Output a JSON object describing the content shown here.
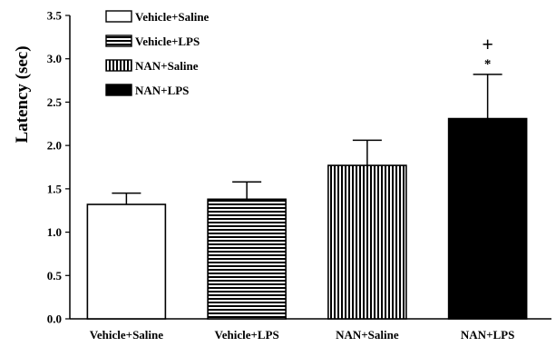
{
  "chart_data": {
    "type": "bar",
    "title": "",
    "xlabel": "",
    "ylabel": "Latency (sec)",
    "ylim": [
      0,
      3.5
    ],
    "yticks": [
      "0.0",
      "0.5",
      "1.0",
      "1.5",
      "2.0",
      "2.5",
      "3.0",
      "3.5"
    ],
    "categories": [
      "Vehicle+Saline",
      "Vehicle+LPS",
      "NAN+Saline",
      "NAN+LPS"
    ],
    "values": [
      1.32,
      1.38,
      1.77,
      2.31
    ],
    "errors": [
      0.13,
      0.2,
      0.29,
      0.51
    ],
    "fills": [
      "white",
      "horizontal-stripes",
      "vertical-stripes",
      "black"
    ],
    "annotations": [
      {
        "category": "NAN+LPS",
        "symbols": [
          "+",
          "*"
        ]
      }
    ],
    "legend": {
      "position": "top-left",
      "entries": [
        "Vehicle+Saline",
        "Vehicle+LPS",
        "NAN+Saline",
        "NAN+LPS"
      ]
    },
    "grid": false
  }
}
